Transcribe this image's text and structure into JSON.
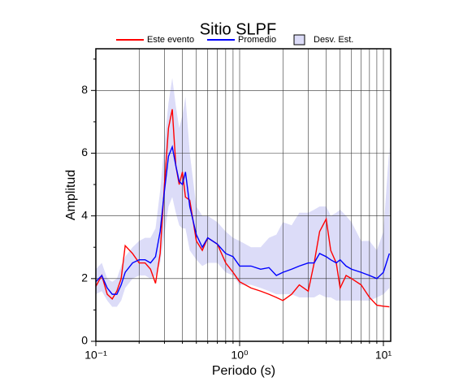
{
  "chart_data": {
    "type": "line",
    "title": "Sitio SLPF",
    "xlabel": "Periodo (s)",
    "ylabel": "Amplitud",
    "log_x": true,
    "grid": true,
    "xlim": [
      0.1,
      11.24
    ],
    "ylim": [
      0,
      9.33
    ],
    "xticks": [
      {
        "value": 0.1,
        "label": "10⁻¹"
      },
      {
        "value": 1,
        "label": "10⁰"
      },
      {
        "value": 10,
        "label": "10¹"
      }
    ],
    "xminor": [
      0.2,
      0.3,
      0.4,
      0.5,
      0.6,
      0.7,
      0.8,
      0.9,
      2,
      3,
      4,
      5,
      6,
      7,
      8,
      9
    ],
    "yticks": [
      0,
      2,
      4,
      6,
      8
    ],
    "yminor": [
      1,
      3,
      5,
      7,
      9
    ],
    "x": [
      0.1,
      0.11,
      0.12,
      0.13,
      0.14,
      0.15,
      0.16,
      0.18,
      0.2,
      0.22,
      0.24,
      0.26,
      0.28,
      0.3,
      0.32,
      0.34,
      0.36,
      0.38,
      0.4,
      0.42,
      0.45,
      0.5,
      0.55,
      0.6,
      0.7,
      0.8,
      0.9,
      1,
      1.2,
      1.4,
      1.6,
      1.8,
      2,
      2.3,
      2.6,
      3,
      3.3,
      3.6,
      4,
      4.3,
      4.7,
      5,
      5.5,
      6,
      7,
      8,
      9,
      10,
      11
    ],
    "band": {
      "name": "Desv. Est.",
      "color": "#dcdcf8",
      "upper": [
        2.3,
        2.5,
        2.0,
        1.9,
        2.0,
        2.4,
        2.7,
        3.0,
        3.2,
        3.3,
        3.3,
        3.6,
        4.8,
        6.3,
        7.6,
        8.4,
        7.5,
        6.8,
        7.2,
        7.8,
        6.0,
        4.3,
        4.0,
        4.0,
        3.8,
        3.5,
        3.3,
        3.2,
        3.0,
        3.0,
        3.3,
        3.4,
        3.8,
        3.7,
        4.1,
        4.1,
        4.2,
        4.3,
        4.3,
        4.0,
        4.1,
        4.2,
        4.0,
        3.8,
        3.2,
        3.2,
        2.9,
        3.5,
        6.2
      ],
      "lower": [
        1.5,
        1.6,
        1.3,
        1.1,
        1.1,
        1.3,
        1.7,
        2.0,
        2.1,
        2.1,
        2.0,
        2.1,
        2.5,
        3.4,
        4.3,
        4.6,
        4.1,
        3.7,
        3.6,
        3.6,
        2.9,
        2.6,
        2.4,
        2.5,
        2.5,
        2.2,
        2.1,
        1.8,
        1.8,
        1.7,
        1.6,
        1.5,
        1.5,
        1.5,
        1.4,
        1.4,
        1.4,
        1.5,
        1.4,
        1.4,
        1.3,
        1.3,
        1.3,
        1.3,
        1.3,
        1.3,
        1.4,
        1.5,
        1.7
      ]
    },
    "series": [
      {
        "name": "Este evento",
        "color": "#ff0000",
        "values": [
          1.75,
          2.1,
          1.5,
          1.35,
          1.6,
          2.0,
          3.05,
          2.8,
          2.5,
          2.5,
          2.3,
          1.85,
          2.8,
          5.0,
          6.8,
          7.4,
          5.6,
          5.0,
          5.4,
          4.6,
          4.5,
          3.2,
          2.9,
          3.3,
          3.1,
          2.5,
          2.2,
          1.9,
          1.7,
          1.6,
          1.5,
          1.4,
          1.3,
          1.5,
          1.8,
          1.6,
          2.5,
          3.5,
          3.9,
          2.9,
          2.5,
          1.7,
          2.1,
          2.0,
          1.8,
          1.4,
          1.15,
          1.12,
          1.1
        ]
      },
      {
        "name": "Promedio",
        "color": "#0000ff",
        "values": [
          1.9,
          2.1,
          1.7,
          1.5,
          1.5,
          1.8,
          2.2,
          2.5,
          2.6,
          2.6,
          2.5,
          2.7,
          3.5,
          4.8,
          5.9,
          6.2,
          5.6,
          5.1,
          5.0,
          5.4,
          4.3,
          3.4,
          3.0,
          3.3,
          3.1,
          2.8,
          2.7,
          2.4,
          2.4,
          2.3,
          2.35,
          2.1,
          2.2,
          2.3,
          2.4,
          2.5,
          2.5,
          2.8,
          2.7,
          2.6,
          2.5,
          2.6,
          2.4,
          2.3,
          2.2,
          2.1,
          2.0,
          2.2,
          2.8
        ]
      }
    ]
  }
}
